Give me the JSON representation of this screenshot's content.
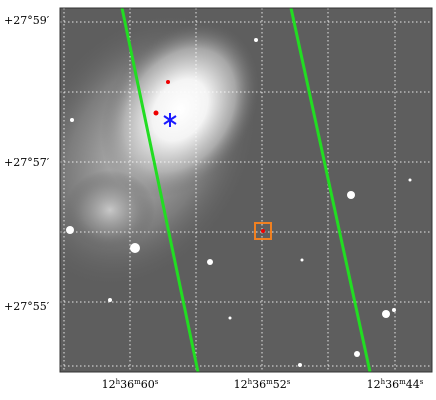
{
  "axes": {
    "y_labels": [
      "+27°59′",
      "+27°57′",
      "+27°55′"
    ],
    "x_labels": [
      {
        "parts": [
          "12",
          "h",
          "36",
          "m",
          "60",
          "s"
        ]
      },
      {
        "parts": [
          "12",
          "h",
          "36",
          "m",
          "52",
          "s"
        ]
      },
      {
        "parts": [
          "12",
          "h",
          "36",
          "m",
          "44",
          "s"
        ]
      }
    ]
  }
}
